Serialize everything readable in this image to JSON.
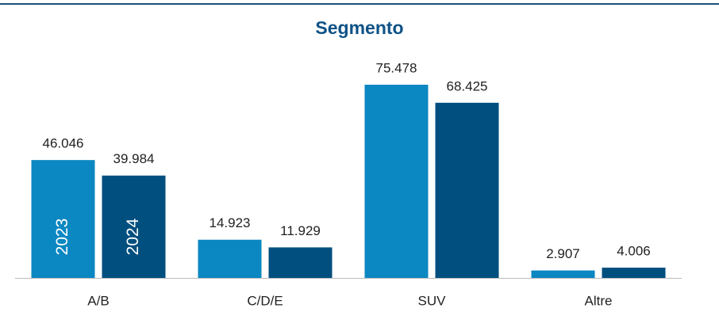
{
  "chart_data": {
    "type": "bar",
    "title": "Segmento",
    "categories": [
      "A/B",
      "C/D/E",
      "SUV",
      "Altre"
    ],
    "series": [
      {
        "name": "2023",
        "color": "#0b87c1",
        "values": [
          46046,
          14923,
          75478,
          2907
        ],
        "value_labels": [
          "46.046",
          "14.923",
          "75.478",
          "2.907"
        ]
      },
      {
        "name": "2024",
        "color": "#004f7f",
        "values": [
          39984,
          11929,
          68425,
          4006
        ],
        "value_labels": [
          "39.984",
          "11.929",
          "68.425",
          "4.006"
        ]
      }
    ]
  }
}
